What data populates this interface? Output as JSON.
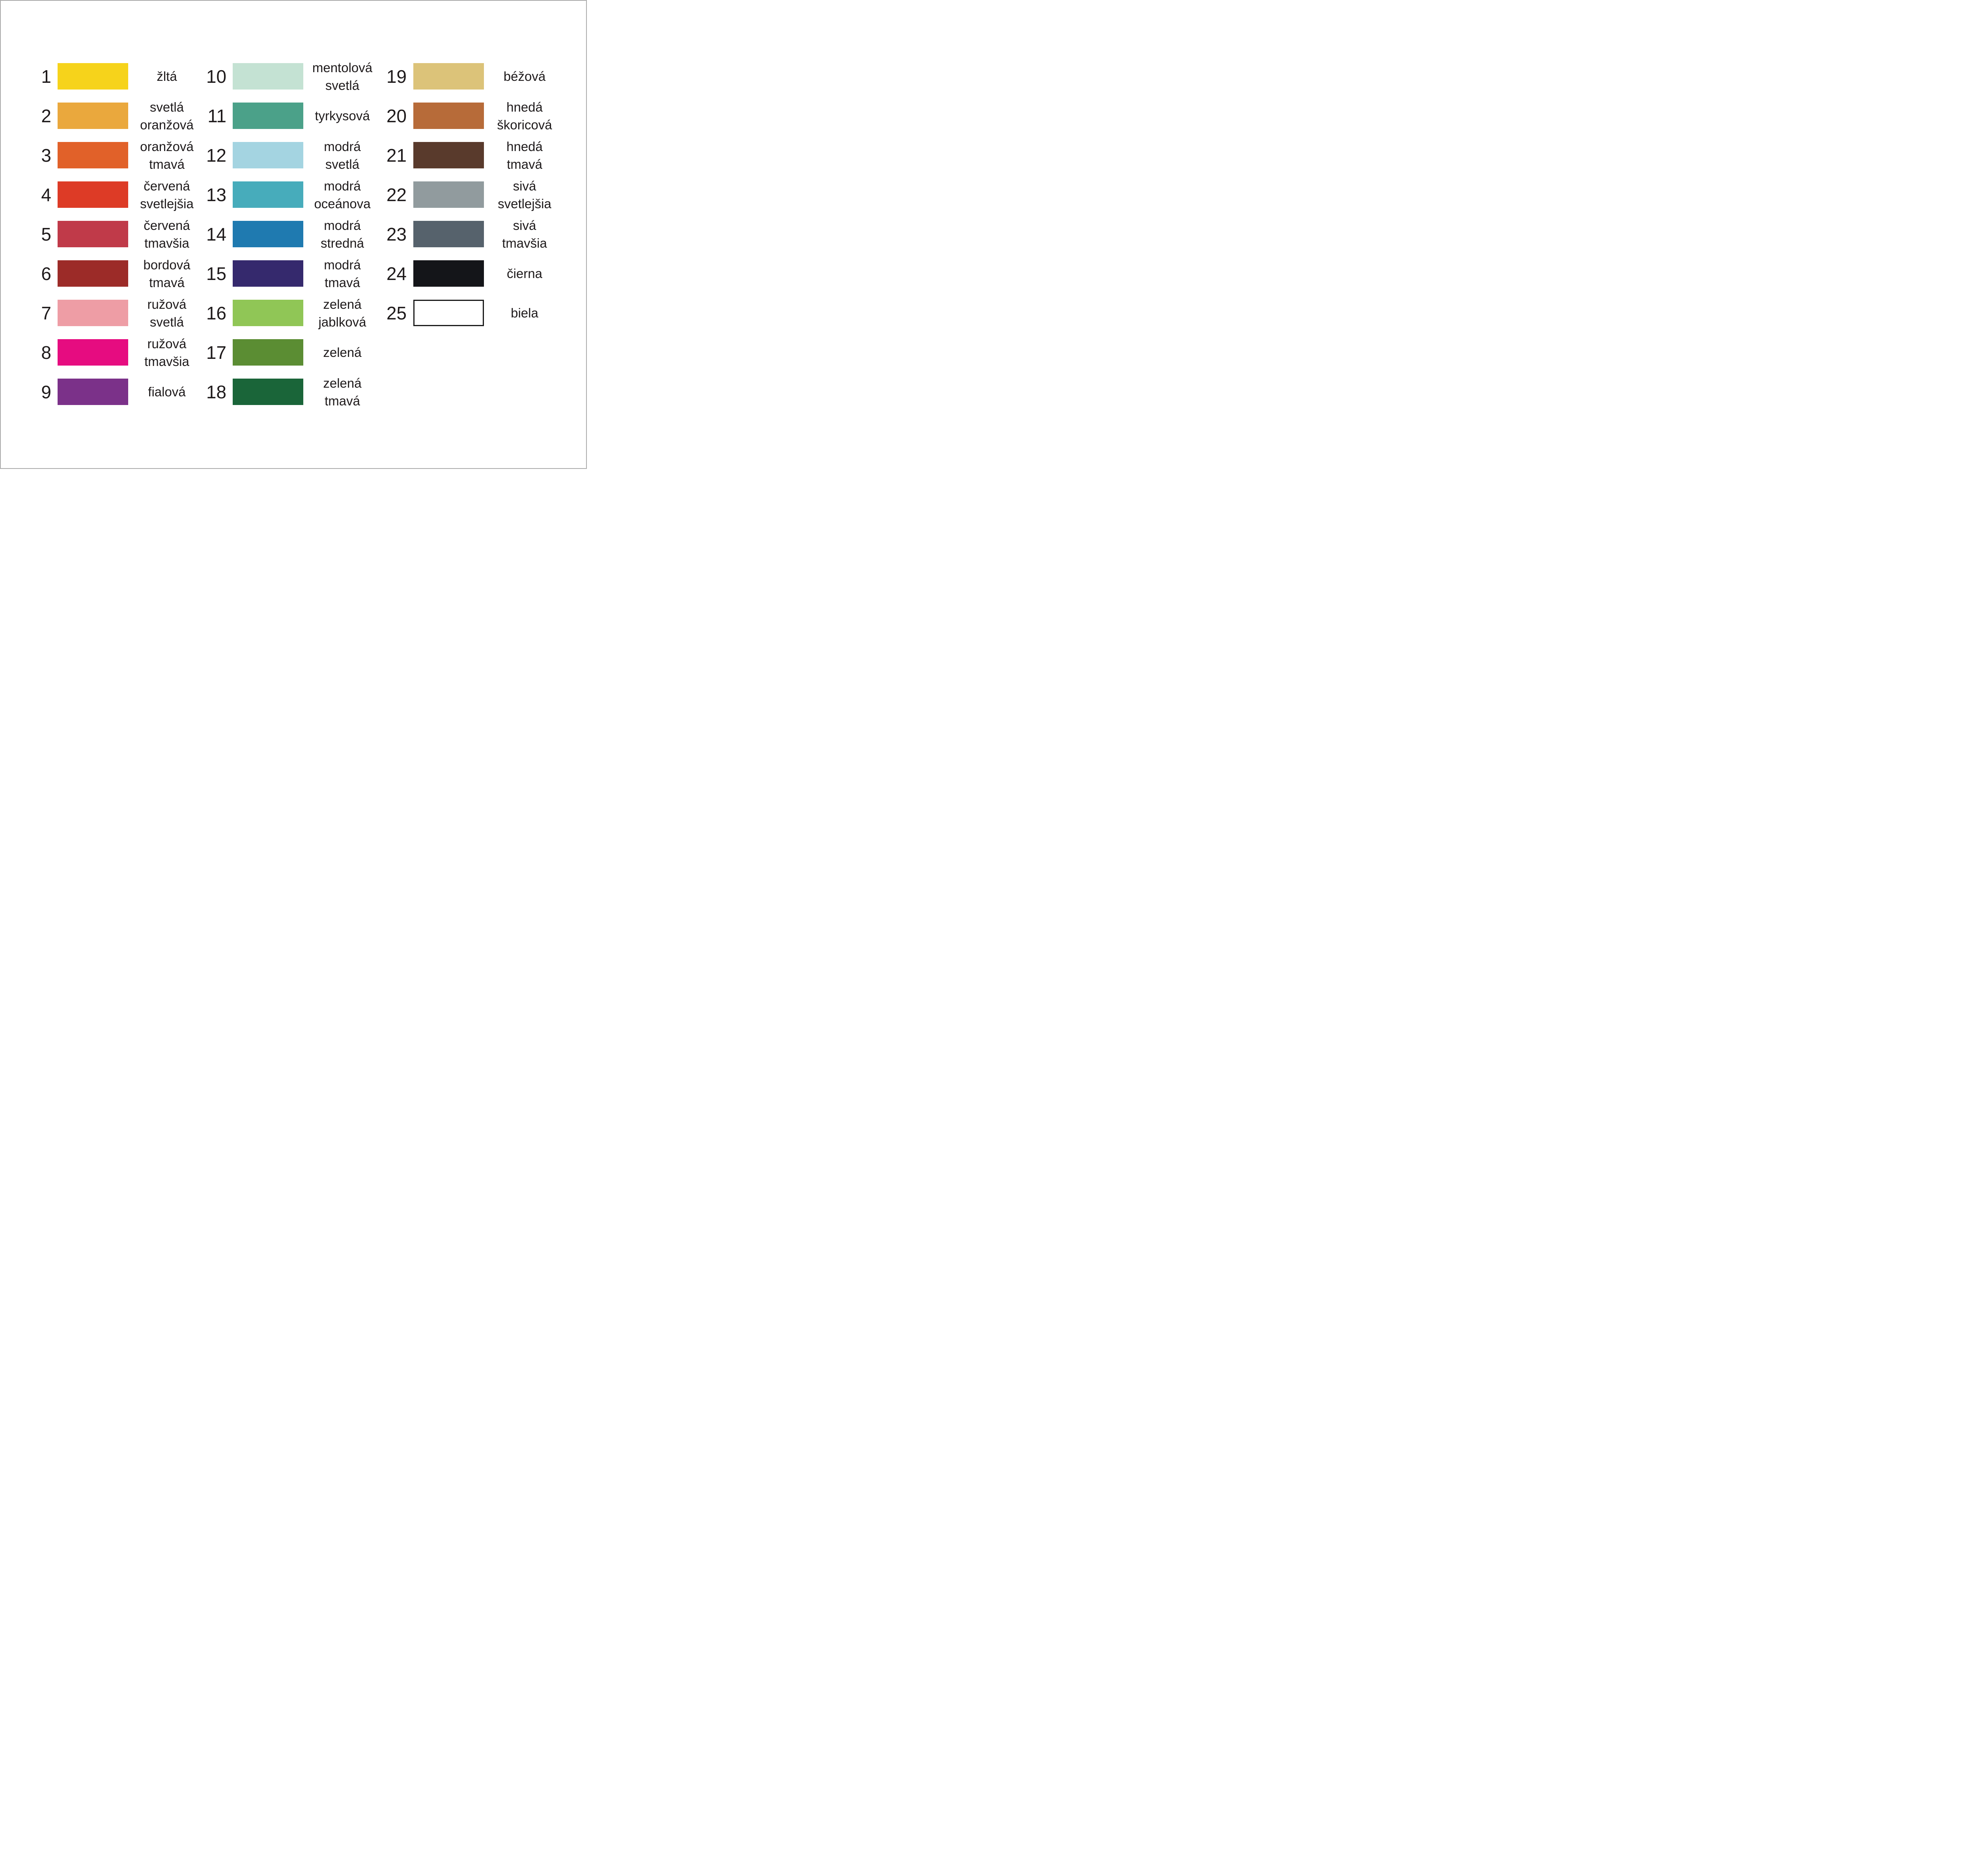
{
  "page": {
    "background": "#FFFFFF",
    "frame_border_color": "#ABABAB",
    "text_color": "#1E1A1B",
    "outline_swatch_border_color": "#1A1A1A"
  },
  "chart_data": {
    "type": "table",
    "description_visible_text_language": "Slovak color names",
    "layout": {
      "columns": 3,
      "rows_per_column": [
        9,
        9,
        7
      ],
      "legend_position": "grid",
      "grid": false
    },
    "rows": [
      {
        "number": 1,
        "name": "žltá",
        "name_lines": [
          "žltá"
        ],
        "color": "#F6D31B"
      },
      {
        "number": 2,
        "name": "svetlá oranžová",
        "name_lines": [
          "svetlá",
          "oranžová"
        ],
        "color": "#EAA83D"
      },
      {
        "number": 3,
        "name": "oranžová tmavá",
        "name_lines": [
          "oranžová",
          "tmavá"
        ],
        "color": "#E16129"
      },
      {
        "number": 4,
        "name": "červená svetlejšia",
        "name_lines": [
          "červená",
          "svetlejšia"
        ],
        "color": "#DD3B26"
      },
      {
        "number": 5,
        "name": "červená tmavšia",
        "name_lines": [
          "červená",
          "tmavšia"
        ],
        "color": "#C03A49"
      },
      {
        "number": 6,
        "name": "bordová tmavá",
        "name_lines": [
          "bordová",
          "tmavá"
        ],
        "color": "#9C2B28"
      },
      {
        "number": 7,
        "name": "ružová svetlá",
        "name_lines": [
          "ružová",
          "svetlá"
        ],
        "color": "#EE9DA5"
      },
      {
        "number": 8,
        "name": "ružová tmavšia",
        "name_lines": [
          "ružová",
          "tmavšia"
        ],
        "color": "#E60C80"
      },
      {
        "number": 9,
        "name": "fialová",
        "name_lines": [
          "fialová"
        ],
        "color": "#7B3189"
      },
      {
        "number": 10,
        "name": "mentolová svetlá",
        "name_lines": [
          "mentolová",
          "svetlá"
        ],
        "color": "#C4E2D3"
      },
      {
        "number": 11,
        "name": "tyrkysová",
        "name_lines": [
          "tyrkysová"
        ],
        "color": "#4BA189"
      },
      {
        "number": 12,
        "name": "modrá svetlá",
        "name_lines": [
          "modrá",
          "svetlá"
        ],
        "color": "#A4D4E1"
      },
      {
        "number": 13,
        "name": "modrá oceánova",
        "name_lines": [
          "modrá",
          "oceánova"
        ],
        "color": "#47ACBB"
      },
      {
        "number": 14,
        "name": "modrá stredná",
        "name_lines": [
          "modrá",
          "stredná"
        ],
        "color": "#1F7AB0"
      },
      {
        "number": 15,
        "name": "modrá tmavá",
        "name_lines": [
          "modrá",
          "tmavá"
        ],
        "color": "#35296D"
      },
      {
        "number": 16,
        "name": "zelená jablková",
        "name_lines": [
          "zelená",
          "jablková"
        ],
        "color": "#90C656"
      },
      {
        "number": 17,
        "name": "zelená",
        "name_lines": [
          "zelená"
        ],
        "color": "#5B8D33"
      },
      {
        "number": 18,
        "name": "zelená tmavá",
        "name_lines": [
          "zelená",
          "tmavá"
        ],
        "color": "#1A6539"
      },
      {
        "number": 19,
        "name": "béžová",
        "name_lines": [
          "béžová"
        ],
        "color": "#DCC379"
      },
      {
        "number": 20,
        "name": "hnedá škoricová",
        "name_lines": [
          "hnedá",
          "škoricová"
        ],
        "color": "#B76B39"
      },
      {
        "number": 21,
        "name": "hnedá tmavá",
        "name_lines": [
          "hnedá",
          "tmavá"
        ],
        "color": "#593A2C"
      },
      {
        "number": 22,
        "name": "sivá svetlejšia",
        "name_lines": [
          "sivá",
          "svetlejšia"
        ],
        "color": "#919B9E"
      },
      {
        "number": 23,
        "name": "sivá tmavšia",
        "name_lines": [
          "sivá",
          "tmavšia"
        ],
        "color": "#56626C"
      },
      {
        "number": 24,
        "name": "čierna",
        "name_lines": [
          "čierna"
        ],
        "color": "#141519"
      },
      {
        "number": 25,
        "name": "biela",
        "name_lines": [
          "biela"
        ],
        "color": "#FFFFFF",
        "outlined": true
      }
    ]
  }
}
